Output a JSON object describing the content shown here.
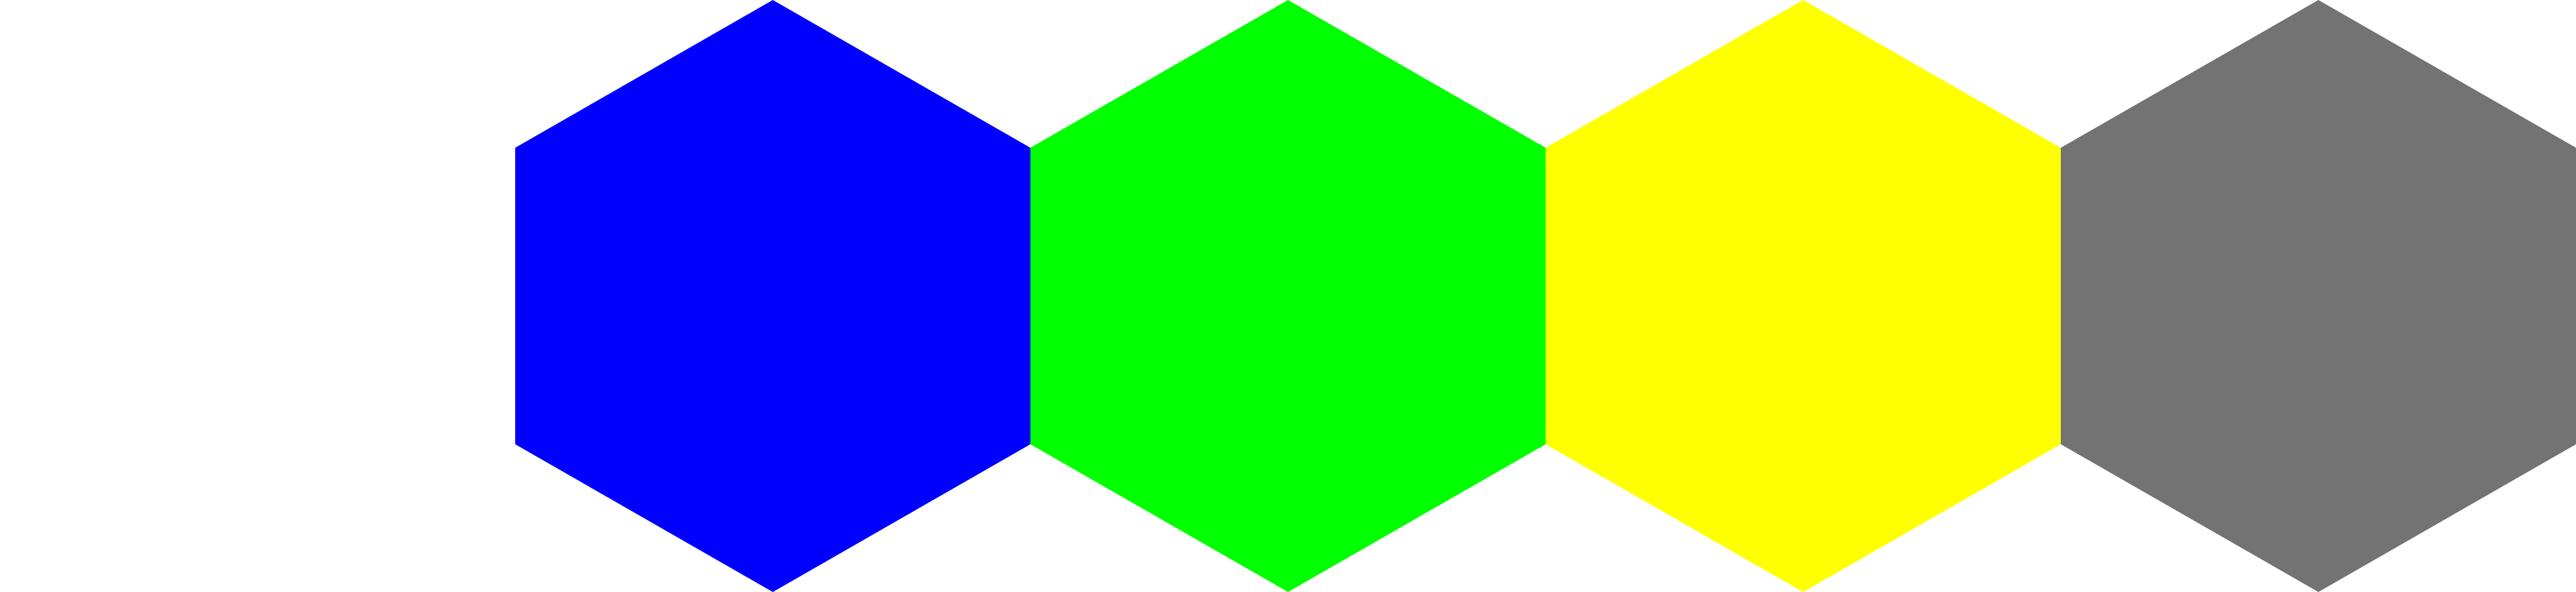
{
  "hex_strip": {
    "tiles": [
      {
        "color": "#0000FF"
      },
      {
        "color": "#00FF00"
      },
      {
        "color": "#FFFF00"
      },
      {
        "color": "#737373"
      }
    ]
  }
}
